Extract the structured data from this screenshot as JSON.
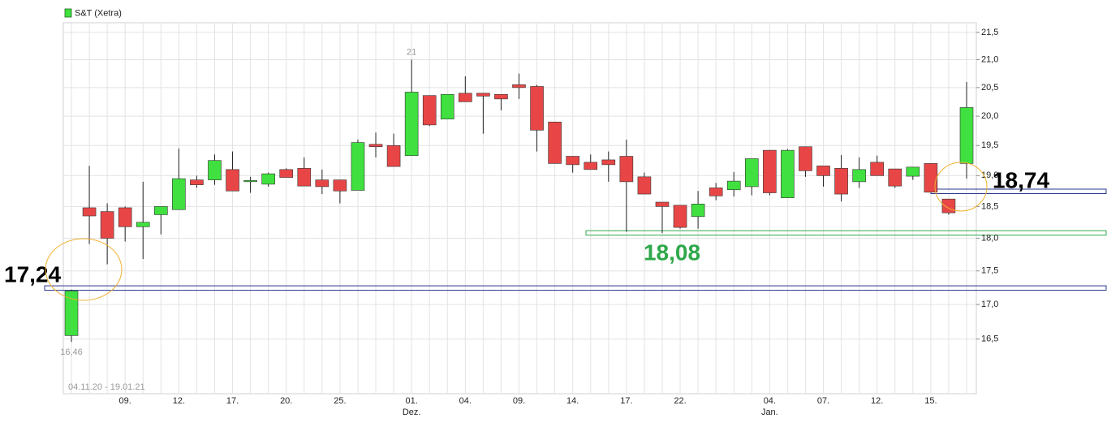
{
  "chart_data": {
    "type": "candlestick",
    "log_scale": true,
    "grid": true,
    "date_range": "04.11.20 - 19.01.21",
    "categories": [
      "",
      null,
      null,
      "09.",
      null,
      null,
      "12.",
      null,
      null,
      "17.",
      null,
      null,
      "20.",
      null,
      null,
      "25.",
      null,
      null,
      null,
      "01.",
      null,
      null,
      "04.",
      null,
      null,
      "09.",
      null,
      null,
      "14.",
      null,
      null,
      "17.",
      null,
      null,
      "22.",
      null,
      null,
      null,
      null,
      "04.",
      null,
      null,
      "07.",
      null,
      null,
      "12.",
      null,
      null,
      "15.",
      null,
      null
    ],
    "month_labels": [
      null,
      null,
      null,
      null,
      null,
      null,
      null,
      null,
      null,
      null,
      null,
      null,
      null,
      null,
      null,
      null,
      null,
      null,
      null,
      "Dez.",
      null,
      null,
      null,
      null,
      null,
      null,
      null,
      null,
      null,
      null,
      null,
      null,
      null,
      null,
      null,
      null,
      null,
      null,
      null,
      "Jan.",
      null,
      null,
      null,
      null,
      null,
      null,
      null,
      null,
      null,
      null,
      null
    ],
    "series": [
      {
        "name": "S&T (Xetra)",
        "up_color": "#3fe03f",
        "down_color": "#e84646",
        "open": [
          16.55,
          18.48,
          18.42,
          18.48,
          18.18,
          18.37,
          18.45,
          18.93,
          18.93,
          19.1,
          18.92,
          18.86,
          19.1,
          19.12,
          18.93,
          18.93,
          18.76,
          19.52,
          19.5,
          19.33,
          20.36,
          19.95,
          20.4,
          20.4,
          20.38,
          20.55,
          20.52,
          19.9,
          19.32,
          19.22,
          19.26,
          19.32,
          18.98,
          18.57,
          18.52,
          18.34,
          18.8,
          18.77,
          18.82,
          19.42,
          18.64,
          19.48,
          19.16,
          19.12,
          18.9,
          19.22,
          19.11,
          18.99,
          19.2,
          18.62,
          19.2
        ],
        "high": [
          17.22,
          19.16,
          18.55,
          18.5,
          18.9,
          18.5,
          19.45,
          19.0,
          19.35,
          19.4,
          18.98,
          19.05,
          19.12,
          19.3,
          19.1,
          18.93,
          19.6,
          19.72,
          19.7,
          21,
          20.36,
          20.38,
          20.7,
          20.4,
          20.38,
          20.75,
          20.55,
          19.9,
          19.32,
          19.35,
          19.4,
          19.6,
          19.05,
          18.57,
          18.52,
          18.75,
          18.88,
          19.06,
          19.28,
          19.42,
          19.44,
          19.48,
          19.16,
          19.34,
          19.3,
          19.33,
          19.11,
          19.14,
          19.2,
          18.62,
          20.6
        ],
        "low": [
          16.46,
          17.91,
          17.6,
          17.95,
          17.68,
          18.06,
          18.45,
          18.8,
          18.85,
          18.75,
          18.72,
          18.82,
          18.97,
          18.83,
          18.7,
          18.55,
          18.76,
          19.3,
          19.15,
          19.33,
          19.83,
          19.95,
          20.25,
          19.7,
          20.1,
          20.3,
          19.4,
          19.2,
          19.05,
          19.1,
          18.9,
          18.1,
          18.7,
          18.08,
          18.15,
          18.15,
          18.6,
          18.66,
          18.68,
          18.68,
          18.64,
          18.98,
          18.82,
          18.58,
          18.8,
          19.0,
          18.8,
          18.93,
          18.73,
          18.37,
          18.95
        ],
        "close": [
          17.2,
          18.35,
          18.0,
          18.18,
          18.25,
          18.5,
          18.95,
          18.85,
          19.25,
          18.75,
          18.92,
          19.03,
          18.97,
          18.83,
          18.82,
          18.75,
          19.55,
          19.48,
          19.15,
          20.42,
          19.85,
          20.38,
          20.25,
          20.35,
          20.3,
          20.5,
          19.76,
          19.2,
          19.18,
          19.1,
          19.18,
          18.9,
          18.7,
          18.5,
          18.17,
          18.54,
          18.67,
          18.91,
          19.28,
          18.72,
          19.42,
          19.08,
          19.0,
          18.7,
          19.1,
          19.0,
          18.83,
          19.14,
          18.73,
          18.4,
          20.15
        ]
      }
    ],
    "extreme_labels": [
      {
        "index": 19,
        "value": 21
      },
      {
        "index": 0,
        "value": 16.46,
        "label": "16,46"
      }
    ],
    "levels": [
      {
        "value": 17.24,
        "label": "17,24",
        "color": "#2a3590",
        "text_color": "#000000"
      },
      {
        "value": 18.08,
        "label": "18,08",
        "color": "#2ea84a",
        "text_color": "#2ea84a"
      },
      {
        "value": 18.74,
        "label": "18,74",
        "color": "#2a3590",
        "text_color": "#000000"
      }
    ],
    "ylim": [
      15.74,
      21.68
    ],
    "yticks": [
      {
        "value": 16.5,
        "label": "16,5"
      },
      {
        "value": 17,
        "label": "17,0"
      },
      {
        "value": 17.5,
        "label": "17,5"
      },
      {
        "value": 18,
        "label": "18,0"
      },
      {
        "value": 18.5,
        "label": "18,5"
      },
      {
        "value": 19,
        "label": "19,0"
      },
      {
        "value": 19.5,
        "label": "19,5"
      },
      {
        "value": 20,
        "label": "20,0"
      },
      {
        "value": 20.5,
        "label": "20,5"
      },
      {
        "value": 21,
        "label": "21,0"
      },
      {
        "value": 21.5,
        "label": "21,5"
      }
    ]
  }
}
